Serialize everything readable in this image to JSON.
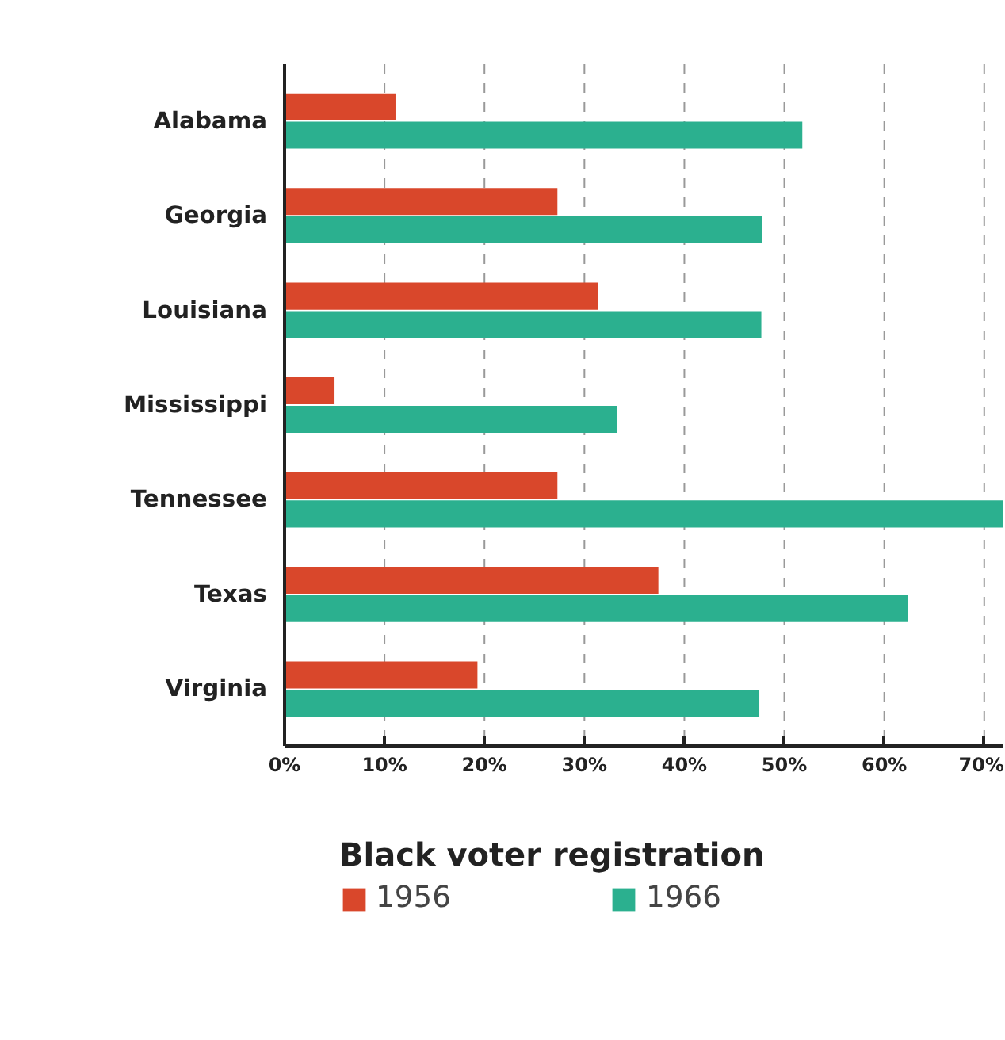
{
  "chart_data": {
    "type": "bar",
    "orientation": "horizontal",
    "legend_title": "Black voter registration",
    "categories": [
      "Alabama",
      "Georgia",
      "Louisiana",
      "Mississippi",
      "Tennessee",
      "Texas",
      "Virginia"
    ],
    "series": [
      {
        "name": "1956",
        "color": "#d9472b",
        "values": [
          11.1,
          27.3,
          31.4,
          5.0,
          27.3,
          37.4,
          19.3
        ]
      },
      {
        "name": "1966",
        "color": "#2bb08f",
        "values": [
          51.8,
          47.8,
          47.7,
          33.3,
          72.0,
          62.4,
          47.5
        ]
      }
    ],
    "xlim": [
      0,
      72
    ],
    "xticks": [
      {
        "value": 0,
        "label": "0%"
      },
      {
        "value": 10,
        "label": "10%"
      },
      {
        "value": 20,
        "label": "20%"
      },
      {
        "value": 30,
        "label": "30%"
      },
      {
        "value": 40,
        "label": "40%"
      },
      {
        "value": 50,
        "label": "50%"
      },
      {
        "value": 60,
        "label": "60%"
      },
      {
        "value": 70,
        "label": "70%"
      }
    ],
    "grid": "x",
    "legend": "bottom"
  }
}
